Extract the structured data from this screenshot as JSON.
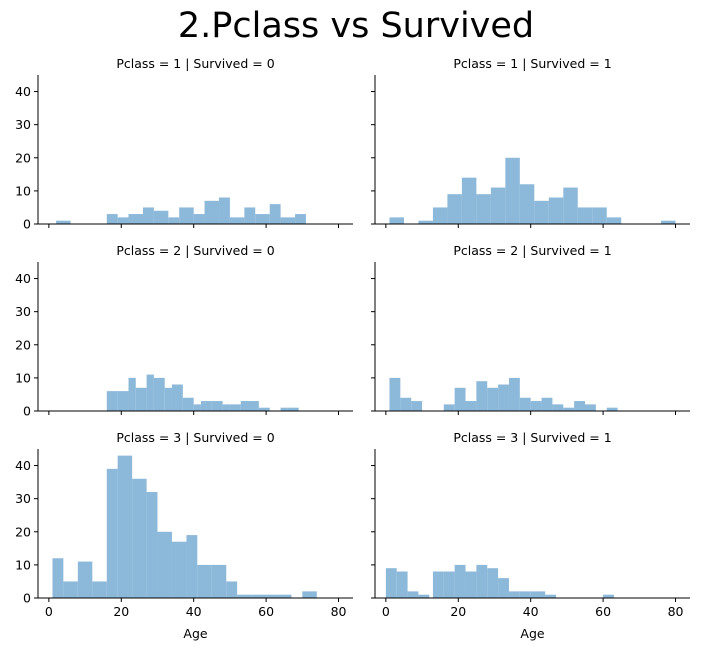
{
  "figure": {
    "title": "2.Pclass vs Survived"
  },
  "colors": {
    "bar": "#8cb8d9",
    "axis": "#000000"
  },
  "chart_data": {
    "type": "bar",
    "layout": "facet-grid",
    "row_variable": "Pclass",
    "col_variable": "Survived",
    "xlabel": "Age",
    "ylabel": "",
    "xlim": [
      -3,
      84
    ],
    "ylim": [
      0,
      45
    ],
    "xticks": [
      "0",
      "20",
      "40",
      "60",
      "80"
    ],
    "yticks": [
      "0",
      "10",
      "20",
      "30",
      "40"
    ],
    "grid": false,
    "panels": [
      {
        "title": "Pclass = 1 | Survived = 0",
        "bins": [
          [
            2,
            6,
            1
          ],
          [
            16,
            19,
            3
          ],
          [
            19,
            22,
            2
          ],
          [
            22,
            26,
            3
          ],
          [
            26,
            29,
            5
          ],
          [
            29,
            33,
            4
          ],
          [
            33,
            36,
            2
          ],
          [
            36,
            40,
            5
          ],
          [
            40,
            43,
            3
          ],
          [
            43,
            47,
            7
          ],
          [
            47,
            50,
            8
          ],
          [
            50,
            54,
            2
          ],
          [
            54,
            57,
            5
          ],
          [
            57,
            61,
            3
          ],
          [
            61,
            64,
            6
          ],
          [
            64,
            68,
            2
          ],
          [
            68,
            71,
            3
          ]
        ]
      },
      {
        "title": "Pclass = 1 | Survived = 1",
        "bins": [
          [
            1,
            5,
            2
          ],
          [
            9,
            13,
            1
          ],
          [
            13,
            17,
            5
          ],
          [
            17,
            21,
            9
          ],
          [
            21,
            25,
            14
          ],
          [
            25,
            29,
            9
          ],
          [
            29,
            33,
            11
          ],
          [
            33,
            37,
            20
          ],
          [
            37,
            41,
            12
          ],
          [
            41,
            45,
            7
          ],
          [
            45,
            49,
            8
          ],
          [
            49,
            53,
            11
          ],
          [
            53,
            57,
            5
          ],
          [
            57,
            61,
            5
          ],
          [
            61,
            65,
            2
          ],
          [
            76,
            80,
            1
          ]
        ]
      },
      {
        "title": "Pclass = 2 | Survived = 0",
        "bins": [
          [
            16,
            19,
            6
          ],
          [
            19,
            22,
            6
          ],
          [
            22,
            24,
            10
          ],
          [
            24,
            27,
            7
          ],
          [
            27,
            29,
            11
          ],
          [
            29,
            32,
            10
          ],
          [
            32,
            34,
            7
          ],
          [
            34,
            37,
            8
          ],
          [
            37,
            40,
            4
          ],
          [
            40,
            42,
            2
          ],
          [
            42,
            45,
            3
          ],
          [
            45,
            48,
            3
          ],
          [
            48,
            50,
            2
          ],
          [
            50,
            53,
            2
          ],
          [
            53,
            55,
            3
          ],
          [
            55,
            58,
            3
          ],
          [
            58,
            61,
            1
          ],
          [
            64,
            66,
            1
          ],
          [
            66,
            69,
            1
          ]
        ]
      },
      {
        "title": "Pclass = 2 | Survived = 1",
        "bins": [
          [
            1,
            4,
            10
          ],
          [
            4,
            7,
            4
          ],
          [
            7,
            10,
            3
          ],
          [
            16,
            19,
            2
          ],
          [
            19,
            22,
            7
          ],
          [
            22,
            25,
            3
          ],
          [
            25,
            28,
            9
          ],
          [
            28,
            31,
            7
          ],
          [
            31,
            34,
            8
          ],
          [
            34,
            37,
            10
          ],
          [
            37,
            40,
            4
          ],
          [
            40,
            43,
            3
          ],
          [
            43,
            46,
            4
          ],
          [
            46,
            49,
            2
          ],
          [
            49,
            52,
            1
          ],
          [
            52,
            55,
            3
          ],
          [
            55,
            58,
            2
          ],
          [
            61,
            64,
            1
          ]
        ]
      },
      {
        "title": "Pclass = 3 | Survived = 0",
        "bins": [
          [
            1,
            4,
            12
          ],
          [
            4,
            8,
            5
          ],
          [
            8,
            12,
            11
          ],
          [
            12,
            16,
            5
          ],
          [
            16,
            19,
            39
          ],
          [
            19,
            23,
            43
          ],
          [
            23,
            27,
            36
          ],
          [
            27,
            30,
            32
          ],
          [
            30,
            34,
            20
          ],
          [
            34,
            38,
            17
          ],
          [
            38,
            41,
            19
          ],
          [
            41,
            45,
            10
          ],
          [
            45,
            49,
            10
          ],
          [
            49,
            52,
            5
          ],
          [
            52,
            56,
            1
          ],
          [
            56,
            60,
            1
          ],
          [
            60,
            63,
            1
          ],
          [
            63,
            67,
            1
          ],
          [
            70,
            74,
            2
          ]
        ]
      },
      {
        "title": "Pclass = 3 | Survived = 1",
        "bins": [
          [
            0,
            3,
            9
          ],
          [
            3,
            6,
            8
          ],
          [
            6,
            9,
            2
          ],
          [
            9,
            12,
            1
          ],
          [
            13,
            16,
            8
          ],
          [
            16,
            19,
            8
          ],
          [
            19,
            22,
            10
          ],
          [
            22,
            25,
            8
          ],
          [
            25,
            28,
            10
          ],
          [
            28,
            31,
            9
          ],
          [
            31,
            34,
            6
          ],
          [
            34,
            37,
            2
          ],
          [
            37,
            40,
            2
          ],
          [
            40,
            44,
            2
          ],
          [
            44,
            47,
            1
          ],
          [
            60,
            63,
            1
          ]
        ]
      }
    ]
  }
}
